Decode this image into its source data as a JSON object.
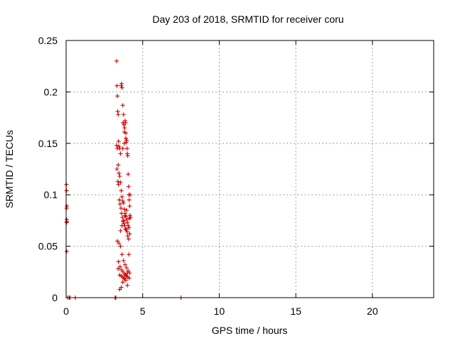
{
  "chart_data": {
    "type": "scatter",
    "title": "Day 203 of 2018, SRMTID for receiver coru",
    "xlabel": "GPS time / hours",
    "ylabel": "SRMTID / TECUs",
    "xlim": [
      0,
      24
    ],
    "ylim": [
      0,
      0.25
    ],
    "xticks": [
      0,
      5,
      10,
      15,
      20
    ],
    "xtick_labels": [
      "0",
      "5",
      "10",
      "15",
      "20"
    ],
    "yticks": [
      0,
      0.05,
      0.1,
      0.15,
      0.2,
      0.25
    ],
    "ytick_labels": [
      "0",
      "0.05",
      "0.1",
      "0.15",
      "0.2",
      "0.25"
    ],
    "grid": true,
    "legend": "none",
    "marker": "plus",
    "color": "#cc0000",
    "series": [
      {
        "x": [
          0.02,
          0.03,
          0.05,
          0.03,
          0.04,
          0.05,
          0.03,
          0.04,
          0.1,
          0.2,
          0.25,
          0.6,
          3.2,
          3.25,
          7.5,
          3.3,
          3.32,
          3.35,
          3.37,
          3.4,
          3.42,
          3.45,
          3.5,
          3.55,
          3.6,
          3.62,
          3.65,
          3.7,
          3.72,
          3.75,
          3.78,
          3.8,
          3.82,
          3.85,
          3.88,
          3.9,
          3.92,
          3.95,
          3.98,
          4.0,
          4.02,
          4.05,
          4.08,
          4.1,
          4.12,
          4.15,
          4.17,
          4.2,
          3.3,
          3.35,
          3.4,
          3.45,
          3.5,
          3.55,
          3.6,
          3.65,
          3.7,
          3.75,
          3.8,
          3.85,
          3.9,
          3.95,
          4.0,
          4.05,
          4.1,
          4.15,
          3.32,
          3.38,
          3.42,
          3.48,
          3.52,
          3.58,
          3.62,
          3.68,
          3.72,
          3.78,
          3.82,
          3.88,
          3.92,
          3.98,
          4.02,
          4.08,
          4.12,
          4.18,
          3.35,
          3.45,
          3.55,
          3.65,
          3.75,
          3.85,
          3.95,
          4.05,
          4.15,
          3.4,
          3.5,
          3.6,
          3.7,
          3.8,
          3.9,
          4.0,
          4.1,
          3.42,
          3.52,
          3.62,
          3.72,
          3.82,
          3.92,
          4.02,
          4.12,
          3.5,
          3.6,
          3.7,
          3.8,
          3.9,
          4.0,
          3.55,
          3.65,
          3.75,
          3.85,
          3.95,
          3.7,
          3.8,
          3.9
        ],
        "y": [
          0.11,
          0.104,
          0.089,
          0.087,
          0.076,
          0.074,
          0.073,
          0.045,
          0.0,
          0.0,
          0.0,
          0.0,
          0.0,
          0.0,
          0.0,
          0.23,
          0.206,
          0.196,
          0.181,
          0.178,
          0.152,
          0.147,
          0.145,
          0.14,
          0.206,
          0.208,
          0.204,
          0.187,
          0.17,
          0.178,
          0.168,
          0.161,
          0.165,
          0.172,
          0.17,
          0.16,
          0.151,
          0.153,
          0.145,
          0.14,
          0.138,
          0.12,
          0.108,
          0.1,
          0.095,
          0.089,
          0.08,
          0.078,
          0.148,
          0.145,
          0.129,
          0.121,
          0.118,
          0.112,
          0.104,
          0.098,
          0.094,
          0.092,
          0.086,
          0.082,
          0.079,
          0.076,
          0.073,
          0.07,
          0.068,
          0.062,
          0.125,
          0.113,
          0.11,
          0.095,
          0.091,
          0.087,
          0.082,
          0.078,
          0.074,
          0.072,
          0.07,
          0.067,
          0.066,
          0.064,
          0.06,
          0.057,
          0.077,
          0.1,
          0.055,
          0.053,
          0.05,
          0.042,
          0.036,
          0.032,
          0.029,
          0.026,
          0.024,
          0.028,
          0.022,
          0.021,
          0.02,
          0.019,
          0.017,
          0.012,
          0.042,
          0.035,
          0.03,
          0.027,
          0.025,
          0.023,
          0.021,
          0.02,
          0.019,
          0.008,
          0.01,
          0.015,
          0.018,
          0.022,
          0.024,
          0.065,
          0.07,
          0.075,
          0.08,
          0.085,
          0.145,
          0.15,
          0.155
        ]
      }
    ]
  }
}
